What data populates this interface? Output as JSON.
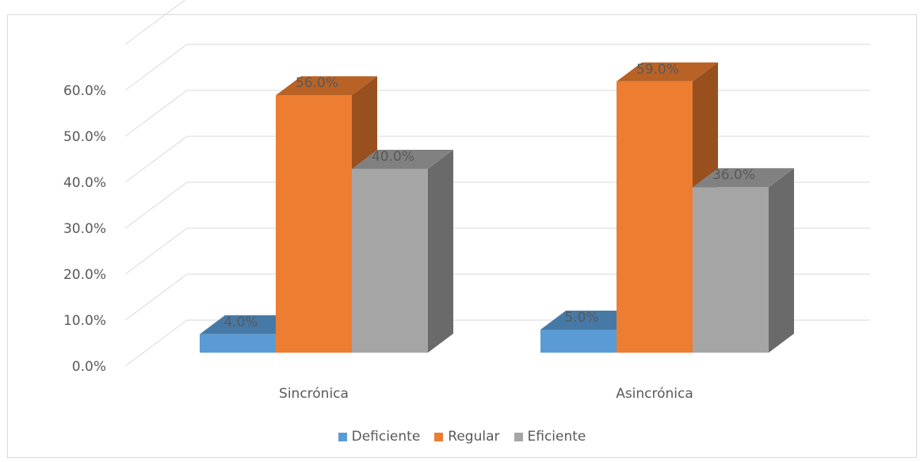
{
  "chart_data": {
    "type": "bar",
    "categories": [
      "Sincrónica",
      "Asincrónica"
    ],
    "series": [
      {
        "name": "Deficiente",
        "values": [
          4.0,
          5.0
        ],
        "labels": [
          "4.0%",
          "5.0%"
        ],
        "color": "#5b9bd5"
      },
      {
        "name": "Regular",
        "values": [
          56.0,
          59.0
        ],
        "labels": [
          "56.0%",
          "59.0%"
        ],
        "color": "#ed7d31"
      },
      {
        "name": "Eficiente",
        "values": [
          40.0,
          36.0
        ],
        "labels": [
          "40.0%",
          "36.0%"
        ],
        "color": "#a5a5a5"
      }
    ],
    "ylim": [
      0,
      60
    ],
    "yticks": [
      "0.0%",
      "10.0%",
      "20.0%",
      "30.0%",
      "40.0%",
      "50.0%",
      "60.0%"
    ],
    "grid": true,
    "legend_position": "bottom",
    "three_d": true
  }
}
